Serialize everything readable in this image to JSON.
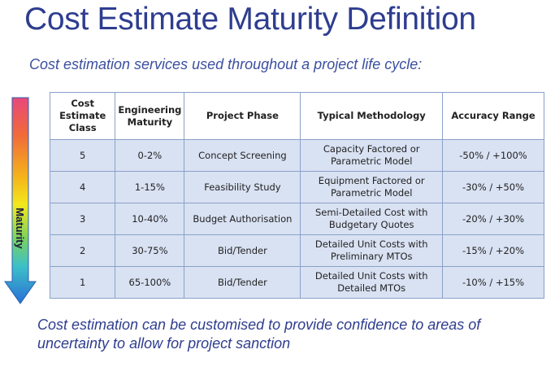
{
  "title": "Cost Estimate Maturity Definition",
  "subtitle": "Cost estimation services used throughout a project life cycle:",
  "maturity_label": "Maturity",
  "table": {
    "headers": {
      "class_line1": "Cost",
      "class_line2": "Estimate",
      "class_line3": "Class",
      "eng_line1": "Engineering",
      "eng_line2": "Maturity",
      "phase": "Project Phase",
      "method": "Typical Methodology",
      "accuracy": "Accuracy Range"
    },
    "rows": [
      {
        "class": "5",
        "maturity": "0-2%",
        "phase": "Concept Screening",
        "method_line1": "Capacity Factored or",
        "method_line2": "Parametric Model",
        "accuracy": "-50% / +100%"
      },
      {
        "class": "4",
        "maturity": "1-15%",
        "phase": "Feasibility Study",
        "method_line1": "Equipment Factored or",
        "method_line2": "Parametric Model",
        "accuracy": "-30% / +50%"
      },
      {
        "class": "3",
        "maturity": "10-40%",
        "phase": "Budget Authorisation",
        "method_line1": "Semi-Detailed Cost with",
        "method_line2": "Budgetary Quotes",
        "accuracy": "-20% / +30%"
      },
      {
        "class": "2",
        "maturity": "30-75%",
        "phase": "Bid/Tender",
        "method_line1": "Detailed Unit Costs with",
        "method_line2": "Preliminary MTOs",
        "accuracy": "-15% / +20%"
      },
      {
        "class": "1",
        "maturity": "65-100%",
        "phase": "Bid/Tender",
        "method_line1": "Detailed Unit Costs with",
        "method_line2": "Detailed MTOs",
        "accuracy": "-10% / +15%"
      }
    ]
  },
  "footer": "Cost estimation can be customised to provide confidence to areas of uncertainty to allow for project sanction",
  "colors": {
    "title": "#2e3d8f",
    "cell_fill": "#d9e2f3",
    "border": "#8aa0c8",
    "arrow_top": "#e8487a",
    "arrow_mid": "#f5e51b",
    "arrow_bottom": "#2a6fd6"
  }
}
